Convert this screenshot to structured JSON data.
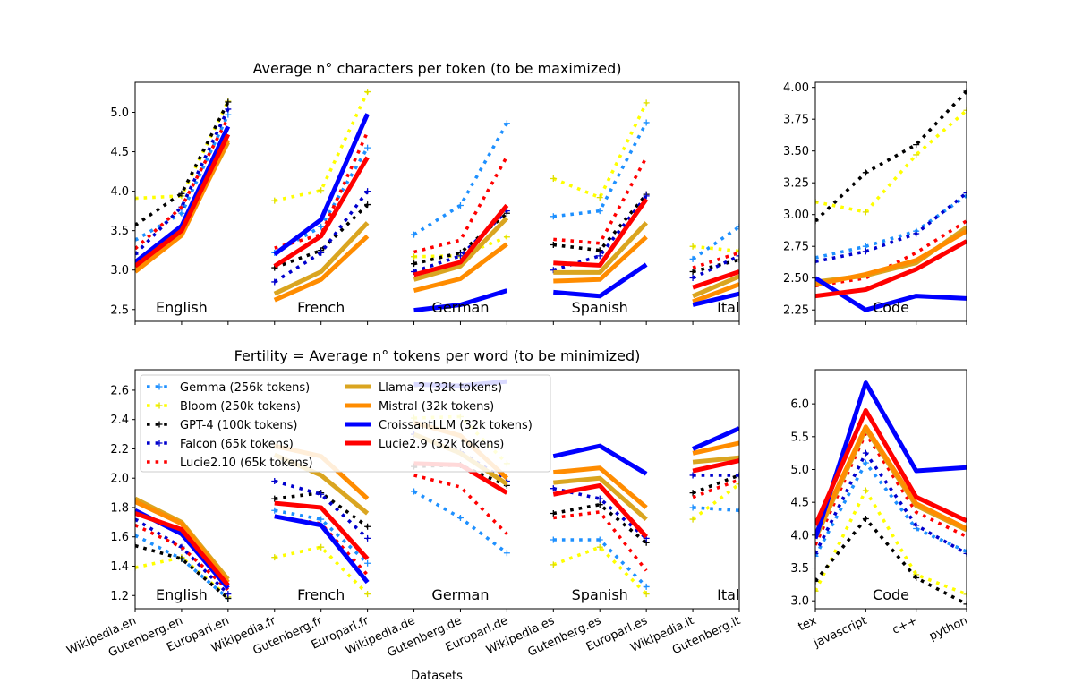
{
  "figure": {
    "xlabel": "Datasets",
    "legend_placement": "upper-left",
    "legend": [
      {
        "name": "Gemma (256k tokens)",
        "color": "#1e90ff",
        "style": "dotted",
        "marker": "plus"
      },
      {
        "name": "Bloom (250k tokens)",
        "color": "#ffff00",
        "style": "dotted",
        "marker": "plus"
      },
      {
        "name": "GPT-4 (100k tokens)",
        "color": "#000000",
        "style": "dotted",
        "marker": "plus"
      },
      {
        "name": "Falcon (65k tokens)",
        "color": "#0000cd",
        "style": "dotted",
        "marker": "plus"
      },
      {
        "name": "Lucie2.10 (65k tokens)",
        "color": "#ff0000",
        "style": "dotted",
        "marker": "none"
      },
      {
        "name": "Llama-2 (32k tokens)",
        "color": "#daa520",
        "style": "solid",
        "marker": "none"
      },
      {
        "name": "Mistral (32k tokens)",
        "color": "#ff8c00",
        "style": "solid",
        "marker": "none"
      },
      {
        "name": "CroissantLLM (32k tokens)",
        "color": "#0000ff",
        "style": "solid",
        "marker": "none"
      },
      {
        "name": "Lucie2.9 (32k tokens)",
        "color": "#ff0000",
        "style": "solid",
        "marker": "none"
      }
    ]
  },
  "chart_data": [
    {
      "id": "top-lang",
      "type": "line",
      "title": "Average n° characters per token (to be maximized)",
      "ylim": [
        2.35,
        5.38
      ],
      "yticks": [
        "2.5",
        "3.0",
        "3.5",
        "4.0",
        "4.5",
        "5.0"
      ],
      "categories": [
        "Wikipedia.en",
        "Gutenberg.en",
        "Europarl.en",
        "Wikipedia.fr",
        "Gutenberg.fr",
        "Europarl.fr",
        "Wikipedia.de",
        "Gutenberg.de",
        "Europarl.de",
        "Wikipedia.es",
        "Gutenberg.es",
        "Europarl.es",
        "Wikipedia.it",
        "Gutenberg.it"
      ],
      "group_labels": [
        "English",
        "French",
        "German",
        "Spanish",
        "Italian"
      ],
      "series": [
        {
          "name": "Gemma (256k tokens)",
          "groups": [
            [
              3.38,
              3.72,
              4.97
            ],
            [
              3.22,
              3.55,
              4.55
            ],
            [
              3.45,
              3.82,
              4.86
            ],
            [
              3.68,
              3.75,
              4.87
            ],
            [
              3.14,
              3.55
            ]
          ]
        },
        {
          "name": "Bloom (250k tokens)",
          "groups": [
            [
              3.91,
              3.94,
              5.14
            ],
            [
              3.88,
              4.01,
              5.26
            ],
            [
              3.17,
              3.18,
              3.42
            ],
            [
              4.16,
              3.92,
              5.12
            ],
            [
              3.3,
              3.24
            ]
          ]
        },
        {
          "name": "GPT-4 (100k tokens)",
          "groups": [
            [
              3.57,
              3.97,
              5.13
            ],
            [
              3.03,
              3.25,
              3.83
            ],
            [
              3.08,
              3.22,
              3.72
            ],
            [
              3.32,
              3.25,
              3.96
            ],
            [
              2.98,
              3.13
            ]
          ]
        },
        {
          "name": "Falcon (65k tokens)",
          "groups": [
            [
              3.2,
              3.8,
              5.04
            ],
            [
              2.85,
              3.22,
              4.0
            ],
            [
              2.98,
              3.18,
              3.75
            ],
            [
              3.0,
              3.18,
              3.94
            ],
            [
              2.9,
              3.18
            ]
          ]
        },
        {
          "name": "Lucie2.10 (65k tokens)",
          "groups": [
            [
              3.27,
              3.8,
              4.93
            ],
            [
              3.28,
              3.45,
              4.75
            ],
            [
              3.23,
              3.38,
              4.44
            ],
            [
              3.39,
              3.34,
              4.43
            ],
            [
              3.03,
              3.22
            ]
          ]
        },
        {
          "name": "Llama-2 (32k tokens)",
          "groups": [
            [
              3.03,
              3.48,
              4.62
            ],
            [
              2.7,
              2.98,
              3.6
            ],
            [
              2.88,
              3.05,
              3.66
            ],
            [
              2.97,
              2.97,
              3.6
            ],
            [
              2.67,
              2.92
            ]
          ]
        },
        {
          "name": "Mistral (32k tokens)",
          "groups": [
            [
              2.98,
              3.44,
              4.65
            ],
            [
              2.62,
              2.88,
              3.43
            ],
            [
              2.74,
              2.89,
              3.33
            ],
            [
              2.86,
              2.88,
              3.42
            ],
            [
              2.6,
              2.82
            ]
          ]
        },
        {
          "name": "CroissantLLM (32k tokens)",
          "groups": [
            [
              3.1,
              3.56,
              4.82
            ],
            [
              3.2,
              3.64,
              4.98
            ],
            [
              2.49,
              2.56,
              2.74
            ],
            [
              2.72,
              2.67,
              3.07
            ],
            [
              2.56,
              2.7
            ]
          ]
        },
        {
          "name": "Lucie2.9 (32k tokens)",
          "groups": [
            [
              3.05,
              3.5,
              4.72
            ],
            [
              3.05,
              3.43,
              4.43
            ],
            [
              2.94,
              3.1,
              3.82
            ],
            [
              3.09,
              3.06,
              3.9
            ],
            [
              2.78,
              2.98
            ]
          ]
        }
      ]
    },
    {
      "id": "top-code",
      "type": "line",
      "title": "",
      "ylim": [
        2.16,
        4.04
      ],
      "yticks": [
        "2.25",
        "2.50",
        "2.75",
        "3.00",
        "3.25",
        "3.50",
        "3.75",
        "4.00"
      ],
      "categories": [
        "tex",
        "javascript",
        "c++",
        "python"
      ],
      "group_labels": [
        "Code"
      ],
      "series": [
        {
          "name": "Gemma (256k tokens)",
          "values": [
            2.66,
            2.75,
            2.87,
            3.15
          ]
        },
        {
          "name": "Bloom (250k tokens)",
          "values": [
            3.1,
            3.02,
            3.47,
            3.82
          ]
        },
        {
          "name": "GPT-4 (100k tokens)",
          "values": [
            2.95,
            3.33,
            3.55,
            3.97
          ]
        },
        {
          "name": "Falcon (65k tokens)",
          "values": [
            2.63,
            2.71,
            2.85,
            3.17
          ]
        },
        {
          "name": "Lucie2.10 (65k tokens)",
          "values": [
            2.44,
            2.5,
            2.7,
            2.95
          ]
        },
        {
          "name": "Llama-2 (32k tokens)",
          "values": [
            2.47,
            2.52,
            2.62,
            2.9
          ]
        },
        {
          "name": "Mistral (32k tokens)",
          "values": [
            2.45,
            2.53,
            2.64,
            2.87
          ]
        },
        {
          "name": "CroissantLLM (32k tokens)",
          "values": [
            2.5,
            2.25,
            2.36,
            2.34
          ]
        },
        {
          "name": "Lucie2.9 (32k tokens)",
          "values": [
            2.36,
            2.41,
            2.57,
            2.79
          ]
        }
      ]
    },
    {
      "id": "bottom-lang",
      "type": "line",
      "title": "Fertility = Average n° tokens per word (to be minimized)",
      "ylim": [
        1.11,
        2.74
      ],
      "yticks": [
        "1.2",
        "1.4",
        "1.6",
        "1.8",
        "2.0",
        "2.2",
        "2.4",
        "2.6"
      ],
      "categories": [
        "Wikipedia.en",
        "Gutenberg.en",
        "Europarl.en",
        "Wikipedia.fr",
        "Gutenberg.fr",
        "Europarl.fr",
        "Wikipedia.de",
        "Gutenberg.de",
        "Europarl.de",
        "Wikipedia.es",
        "Gutenberg.es",
        "Europarl.es",
        "Wikipedia.it",
        "Gutenberg.it"
      ],
      "group_labels": [
        "English",
        "French",
        "German",
        "Spanish",
        "Italian"
      ],
      "series": [
        {
          "name": "Gemma (256k tokens)",
          "groups": [
            [
              1.61,
              1.45,
              1.18
            ],
            [
              1.78,
              1.72,
              1.42
            ],
            [
              1.91,
              1.73,
              1.49
            ],
            [
              1.58,
              1.58,
              1.26
            ],
            [
              1.8,
              1.78
            ]
          ]
        },
        {
          "name": "Bloom (250k tokens)",
          "groups": [
            [
              1.39,
              1.46,
              1.19
            ],
            [
              1.46,
              1.53,
              1.21
            ],
            [
              2.41,
              2.42,
              2.1
            ],
            [
              1.41,
              1.53,
              1.21
            ],
            [
              1.72,
              1.96
            ]
          ]
        },
        {
          "name": "GPT-4 (100k tokens)",
          "groups": [
            [
              1.54,
              1.45,
              1.18
            ],
            [
              1.86,
              1.9,
              1.67
            ],
            [
              2.08,
              2.09,
              1.95
            ],
            [
              1.76,
              1.82,
              1.56
            ],
            [
              1.9,
              2.02
            ]
          ]
        },
        {
          "name": "Falcon (65k tokens)",
          "groups": [
            [
              1.72,
              1.53,
              1.21
            ],
            [
              1.98,
              1.89,
              1.59
            ],
            [
              2.3,
              2.18,
              1.98
            ],
            [
              1.93,
              1.86,
              1.59
            ],
            [
              2.02,
              2.02
            ]
          ]
        },
        {
          "name": "Lucie2.10 (65k tokens)",
          "groups": [
            [
              1.68,
              1.53,
              1.24
            ],
            [
              1.74,
              1.69,
              1.34
            ],
            [
              2.02,
              1.94,
              1.62
            ],
            [
              1.73,
              1.77,
              1.37
            ],
            [
              1.87,
              1.99
            ]
          ]
        },
        {
          "name": "Llama-2 (32k tokens)",
          "groups": [
            [
              1.86,
              1.7,
              1.31
            ],
            [
              2.16,
              2.02,
              1.76
            ],
            [
              2.3,
              2.17,
              1.96
            ],
            [
              1.97,
              2.0,
              1.72
            ],
            [
              2.11,
              2.14
            ]
          ]
        },
        {
          "name": "Mistral (32k tokens)",
          "groups": [
            [
              1.84,
              1.69,
              1.29
            ],
            [
              2.22,
              2.15,
              1.86
            ],
            [
              2.38,
              2.29,
              2.0
            ],
            [
              2.04,
              2.07,
              1.8
            ],
            [
              2.17,
              2.24
            ]
          ]
        },
        {
          "name": "CroissantLLM (32k tokens)",
          "groups": [
            [
              1.78,
              1.62,
              1.25
            ],
            [
              1.74,
              1.68,
              1.29
            ],
            [
              2.64,
              2.63,
              2.66
            ],
            [
              2.15,
              2.22,
              2.03
            ],
            [
              2.2,
              2.34
            ]
          ]
        },
        {
          "name": "Lucie2.9 (32k tokens)",
          "groups": [
            [
              1.76,
              1.65,
              1.27
            ],
            [
              1.83,
              1.8,
              1.45
            ],
            [
              2.1,
              2.09,
              1.9
            ],
            [
              1.89,
              1.95,
              1.6
            ],
            [
              2.05,
              2.12
            ]
          ]
        }
      ]
    },
    {
      "id": "bottom-code",
      "type": "line",
      "title": "",
      "ylim": [
        2.88,
        6.52
      ],
      "yticks": [
        "3.0",
        "3.5",
        "4.0",
        "4.5",
        "5.0",
        "5.5",
        "6.0"
      ],
      "categories": [
        "tex",
        "javascript",
        "c++",
        "python"
      ],
      "group_labels": [
        "Code"
      ],
      "series": [
        {
          "name": "Gemma (256k tokens)",
          "values": [
            3.68,
            5.1,
            4.1,
            3.75
          ]
        },
        {
          "name": "Bloom (250k tokens)",
          "values": [
            3.15,
            4.68,
            3.4,
            3.1
          ]
        },
        {
          "name": "GPT-4 (100k tokens)",
          "values": [
            3.3,
            4.25,
            3.35,
            2.95
          ]
        },
        {
          "name": "Falcon (65k tokens)",
          "values": [
            3.72,
            5.25,
            4.15,
            3.72
          ]
        },
        {
          "name": "Lucie2.10 (65k tokens)",
          "values": [
            3.85,
            5.55,
            4.35,
            3.98
          ]
        },
        {
          "name": "Llama-2 (32k tokens)",
          "values": [
            3.95,
            5.62,
            4.45,
            4.08
          ]
        },
        {
          "name": "Mistral (32k tokens)",
          "values": [
            4.0,
            5.65,
            4.48,
            4.1
          ]
        },
        {
          "name": "CroissantLLM (32k tokens)",
          "values": [
            3.95,
            6.32,
            4.98,
            5.03
          ]
        },
        {
          "name": "Lucie2.9 (32k tokens)",
          "values": [
            4.15,
            5.9,
            4.58,
            4.22
          ]
        }
      ]
    }
  ]
}
